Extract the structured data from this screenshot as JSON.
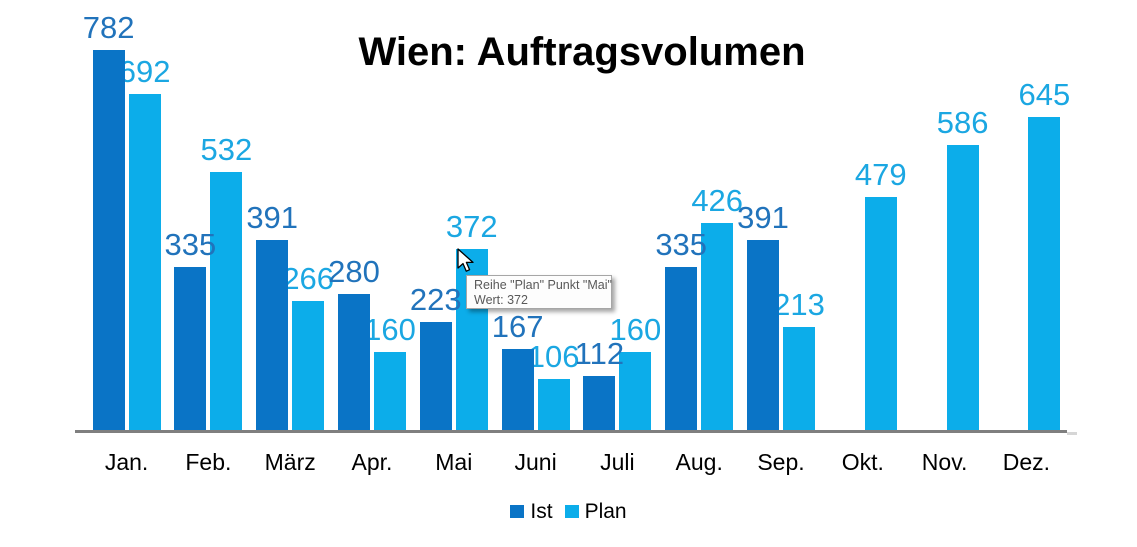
{
  "title": "Wien: Auftragsvolumen",
  "chart_data": {
    "type": "bar",
    "title": "Wien: Auftragsvolumen",
    "categories": [
      "Jan.",
      "Feb.",
      "März",
      "Apr.",
      "Mai",
      "Juni",
      "Juli",
      "Aug.",
      "Sep.",
      "Okt.",
      "Nov.",
      "Dez."
    ],
    "series": [
      {
        "name": "Ist",
        "color": "#0a74c6",
        "label_color": "#2173bb",
        "values": [
          782,
          335,
          391,
          280,
          223,
          167,
          112,
          335,
          391,
          null,
          null,
          null
        ]
      },
      {
        "name": "Plan",
        "color": "#0cadea",
        "label_color": "#1ba7e2",
        "values": [
          692,
          532,
          266,
          160,
          372,
          106,
          160,
          426,
          213,
          479,
          586,
          645
        ]
      }
    ],
    "ylim": [
      0,
      782
    ],
    "grid": false,
    "data_labels": true,
    "legend_position": "bottom",
    "xlabel": "",
    "ylabel": ""
  },
  "legend": {
    "items": [
      {
        "label": "Ist",
        "color": "#0a74c6"
      },
      {
        "label": "Plan",
        "color": "#0cadea"
      }
    ]
  },
  "tooltip": {
    "line1": "Reihe \"Plan\" Punkt \"Mai\"",
    "line2": "Wert: 372",
    "hover_series": "Plan",
    "hover_point": "Mai",
    "hover_value": 372
  },
  "colors": {
    "ist_bar": "#0a74c6",
    "plan_bar": "#0cadea",
    "ist_label": "#2173bb",
    "plan_label": "#1ba7e2",
    "axis_line": "#7f7f7f",
    "title_text": "#000000"
  }
}
